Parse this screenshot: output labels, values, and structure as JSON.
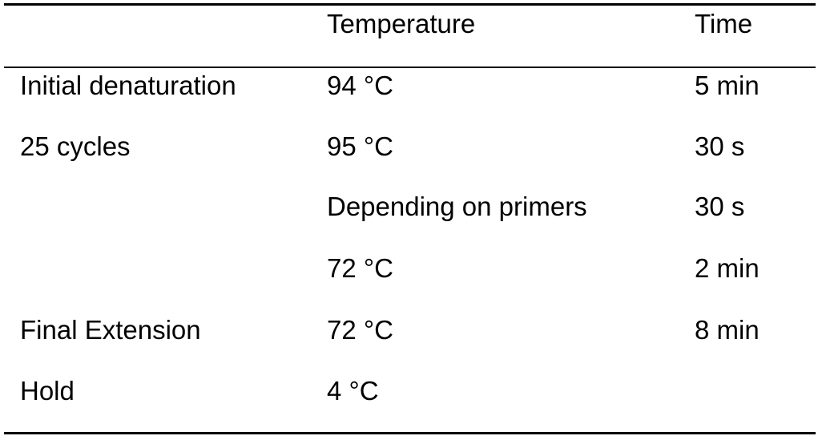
{
  "table": {
    "header": {
      "temperature": "Temperature",
      "time": "Time"
    },
    "rows": [
      {
        "step": "Initial denaturation",
        "temperature": "94 °C",
        "time": "5 min"
      },
      {
        "step": "25 cycles",
        "temperature": "95 °C",
        "time": "30 s"
      },
      {
        "temperature": "Depending on primers",
        "time": "30 s"
      },
      {
        "temperature": "72 °C",
        "time": "2 min"
      },
      {
        "step": "Final Extension",
        "temperature": "72 °C",
        "time": "8 min"
      },
      {
        "step": "Hold",
        "temperature": "4 °C"
      }
    ]
  }
}
